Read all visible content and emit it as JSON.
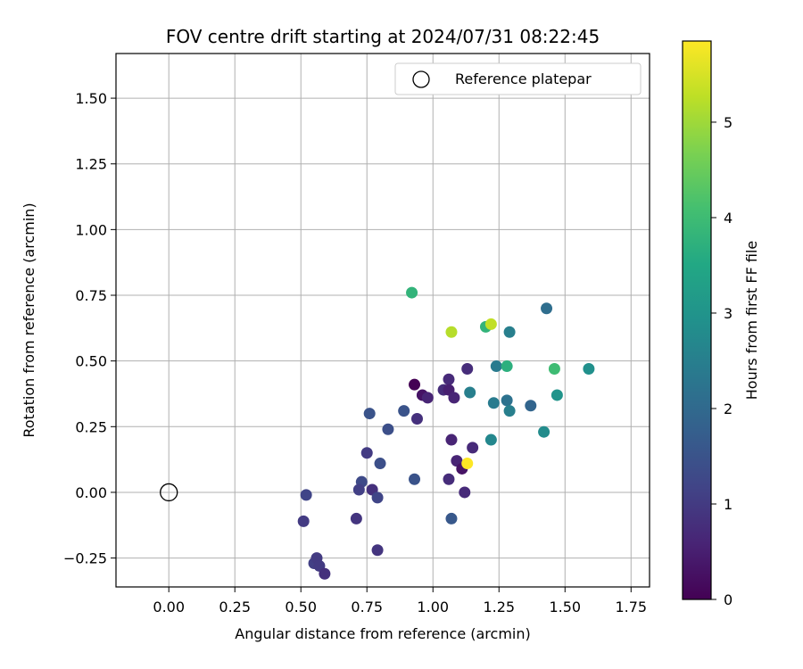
{
  "chart_data": {
    "type": "scatter",
    "title": "FOV centre drift starting at 2024/07/31 08:22:45",
    "xlabel": "Angular distance from reference (arcmin)",
    "ylabel": "Rotation from reference (arcmin)",
    "xlim": [
      -0.2,
      1.82
    ],
    "ylim": [
      -0.36,
      1.67
    ],
    "xticks": [
      0.0,
      0.25,
      0.5,
      0.75,
      1.0,
      1.25,
      1.5,
      1.75
    ],
    "xtick_labels": [
      "0.00",
      "0.25",
      "0.50",
      "0.75",
      "1.00",
      "1.25",
      "1.50",
      "1.75"
    ],
    "yticks": [
      -0.25,
      0.0,
      0.25,
      0.5,
      0.75,
      1.0,
      1.25,
      1.5
    ],
    "ytick_labels": [
      "−0.25",
      "0.00",
      "0.25",
      "0.50",
      "0.75",
      "1.00",
      "1.25",
      "1.50"
    ],
    "grid": true,
    "legend": {
      "placement": "top-right",
      "entries": [
        "Reference platepar"
      ]
    },
    "reference_point": {
      "x": 0.0,
      "y": 0.0
    },
    "colorbar": {
      "label": "Hours from first FF file",
      "min": 0,
      "max": 5.85,
      "ticks": [
        0,
        1,
        2,
        3,
        4,
        5
      ],
      "tick_labels": [
        "0",
        "1",
        "2",
        "3",
        "4",
        "5"
      ],
      "colormap": "viridis"
    },
    "points": [
      {
        "x": 0.93,
        "y": 0.41,
        "c": 0.0
      },
      {
        "x": 0.96,
        "y": 0.37,
        "c": 0.3
      },
      {
        "x": 0.98,
        "y": 0.36,
        "c": 0.6
      },
      {
        "x": 0.94,
        "y": 0.28,
        "c": 0.8
      },
      {
        "x": 1.06,
        "y": 0.43,
        "c": 0.7
      },
      {
        "x": 1.04,
        "y": 0.39,
        "c": 0.75
      },
      {
        "x": 1.06,
        "y": 0.39,
        "c": 0.5
      },
      {
        "x": 1.08,
        "y": 0.36,
        "c": 0.6
      },
      {
        "x": 1.13,
        "y": 0.47,
        "c": 0.75
      },
      {
        "x": 1.07,
        "y": 0.2,
        "c": 0.6
      },
      {
        "x": 1.09,
        "y": 0.12,
        "c": 0.6
      },
      {
        "x": 1.11,
        "y": 0.09,
        "c": 0.3
      },
      {
        "x": 1.15,
        "y": 0.17,
        "c": 0.7
      },
      {
        "x": 1.06,
        "y": 0.05,
        "c": 0.75
      },
      {
        "x": 1.12,
        "y": 0.0,
        "c": 0.7
      },
      {
        "x": 1.07,
        "y": -0.1,
        "c": 1.6
      },
      {
        "x": 0.76,
        "y": 0.3,
        "c": 1.5
      },
      {
        "x": 0.75,
        "y": 0.15,
        "c": 1.0
      },
      {
        "x": 0.83,
        "y": 0.24,
        "c": 1.4
      },
      {
        "x": 0.89,
        "y": 0.31,
        "c": 1.5
      },
      {
        "x": 0.93,
        "y": 0.05,
        "c": 1.5
      },
      {
        "x": 0.8,
        "y": 0.11,
        "c": 1.4
      },
      {
        "x": 0.73,
        "y": 0.04,
        "c": 1.3
      },
      {
        "x": 0.72,
        "y": 0.01,
        "c": 1.1
      },
      {
        "x": 0.77,
        "y": 0.01,
        "c": 0.8
      },
      {
        "x": 0.79,
        "y": -0.02,
        "c": 1.2
      },
      {
        "x": 0.71,
        "y": -0.1,
        "c": 0.9
      },
      {
        "x": 0.79,
        "y": -0.22,
        "c": 0.9
      },
      {
        "x": 0.52,
        "y": -0.01,
        "c": 1.2
      },
      {
        "x": 0.51,
        "y": -0.11,
        "c": 1.0
      },
      {
        "x": 0.55,
        "y": -0.27,
        "c": 1.1
      },
      {
        "x": 0.56,
        "y": -0.25,
        "c": 1.0
      },
      {
        "x": 0.57,
        "y": -0.28,
        "c": 1.0
      },
      {
        "x": 0.59,
        "y": -0.31,
        "c": 0.8
      },
      {
        "x": 1.14,
        "y": 0.38,
        "c": 2.5
      },
      {
        "x": 1.24,
        "y": 0.48,
        "c": 2.4
      },
      {
        "x": 1.23,
        "y": 0.34,
        "c": 2.4
      },
      {
        "x": 1.28,
        "y": 0.35,
        "c": 2.2
      },
      {
        "x": 1.29,
        "y": 0.31,
        "c": 2.5
      },
      {
        "x": 1.37,
        "y": 0.33,
        "c": 1.9
      },
      {
        "x": 1.29,
        "y": 0.61,
        "c": 2.5
      },
      {
        "x": 1.43,
        "y": 0.7,
        "c": 2.1
      },
      {
        "x": 1.22,
        "y": 0.2,
        "c": 2.7
      },
      {
        "x": 1.42,
        "y": 0.23,
        "c": 2.8
      },
      {
        "x": 1.47,
        "y": 0.37,
        "c": 3.0
      },
      {
        "x": 1.59,
        "y": 0.47,
        "c": 2.9
      },
      {
        "x": 1.28,
        "y": 0.48,
        "c": 3.7
      },
      {
        "x": 1.46,
        "y": 0.47,
        "c": 4.0
      },
      {
        "x": 1.2,
        "y": 0.63,
        "c": 3.8
      },
      {
        "x": 0.92,
        "y": 0.76,
        "c": 3.8
      },
      {
        "x": 1.07,
        "y": 0.61,
        "c": 5.2
      },
      {
        "x": 1.22,
        "y": 0.64,
        "c": 5.3
      },
      {
        "x": 1.13,
        "y": 0.11,
        "c": 5.85
      }
    ]
  }
}
